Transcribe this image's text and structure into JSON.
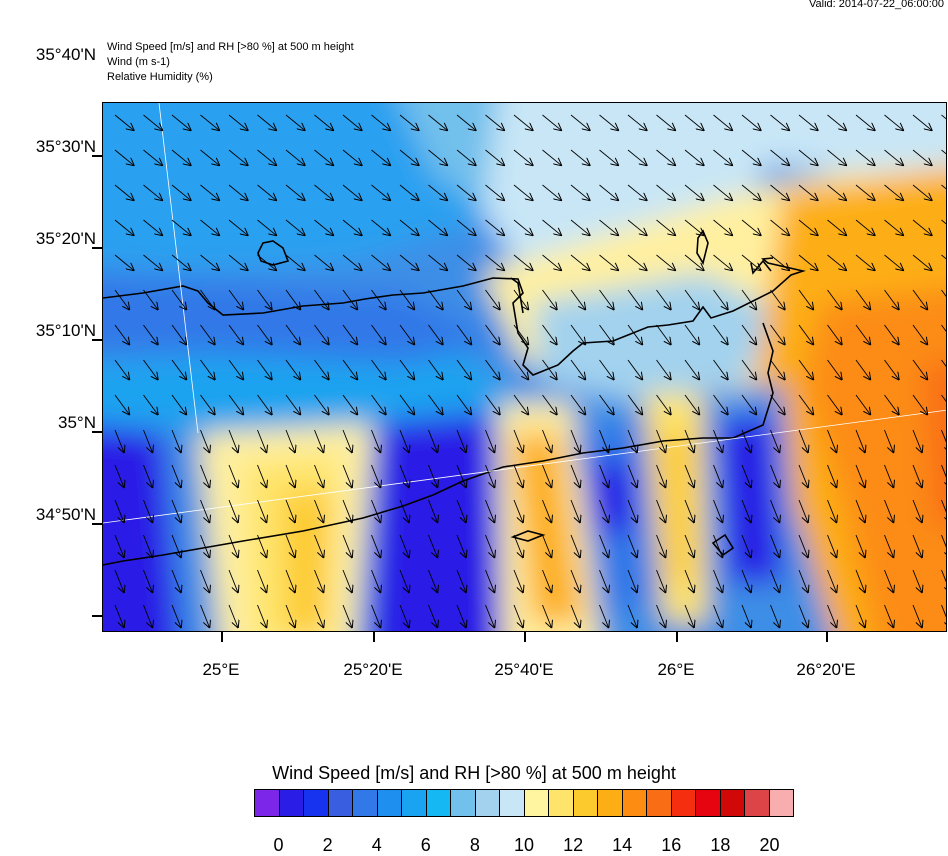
{
  "valid_time": "Valid: 2014-07-22_06:00:00",
  "header": {
    "line1": "Wind Speed [m/s] and RH [>80 %] at 500 m height",
    "line2": "Wind   (m s-1)",
    "line3": "Relative Humidity   (%)"
  },
  "map": {
    "lat_labels": [
      "35°40'N",
      "35°30'N",
      "35°20'N",
      "35°10'N",
      "35°N",
      "34°50'N"
    ],
    "lon_labels": [
      "25°E",
      "25°20'E",
      "25°40'E",
      "26°E",
      "26°20'E"
    ],
    "wind_direction": "north-westerly (arrows pointing south-east / south)"
  },
  "colorbar": {
    "title": "Wind Speed [m/s] and RH [>80 %] at 500 m height",
    "labels": [
      "0",
      "2",
      "4",
      "6",
      "8",
      "10",
      "12",
      "14",
      "16",
      "18",
      "20"
    ],
    "colors": [
      "#7b26e8",
      "#2a1ee6",
      "#1733f0",
      "#3a5ee0",
      "#3178e8",
      "#1e8fee",
      "#1aa3f0",
      "#16b8f4",
      "#72c0ec",
      "#a2d2ee",
      "#c8e6f6",
      "#fff4a0",
      "#fee46a",
      "#fdca2e",
      "#fdae14",
      "#fc8c12",
      "#f96e14",
      "#f52e10",
      "#e50410",
      "#d00808",
      "#dc4448",
      "#f8aeae"
    ]
  }
}
